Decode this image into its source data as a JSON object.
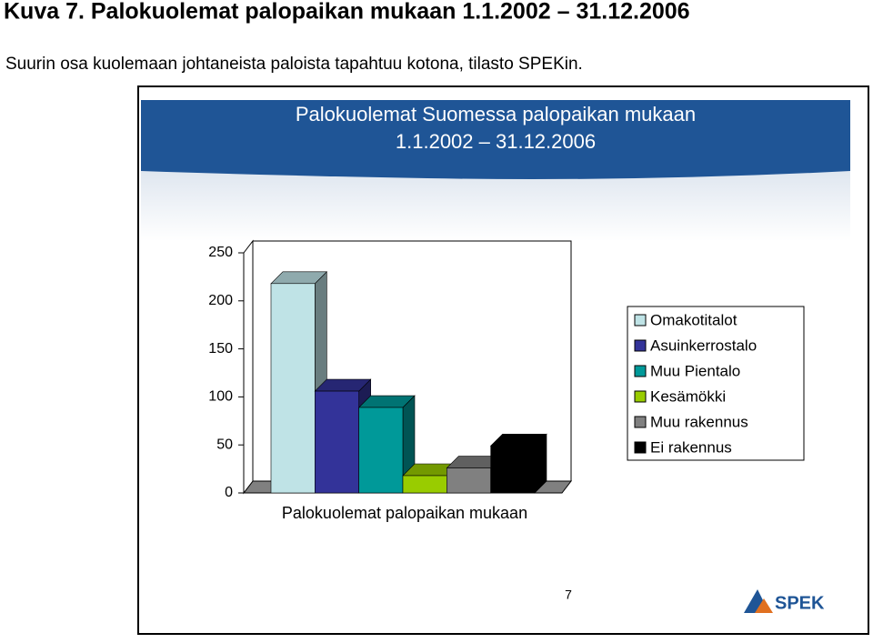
{
  "heading": "Kuva 7. Palokuolemat palopaikan mukaan 1.1.2002 – 31.12.2006",
  "subheading": "Suurin osa kuolemaan johtaneista paloista tapahtuu kotona, tilasto SPEKin.",
  "page_number": "7",
  "logo": "SPEK",
  "chart_data": {
    "type": "bar3d",
    "title": [
      "Palokuolemat Suomessa palopaikan mukaan",
      "1.1.2002 – 31.12.2006"
    ],
    "categories": [
      "Palokuolemat palopaikan mukaan"
    ],
    "series": [
      {
        "name": "Omakotitalot",
        "color": "#bfe3e6",
        "values": [
          218
        ]
      },
      {
        "name": "Asuinkerrostalo",
        "color": "#333399",
        "values": [
          106
        ]
      },
      {
        "name": "Muu Pientalo",
        "color": "#009999",
        "values": [
          89
        ]
      },
      {
        "name": "Kesämökki",
        "color": "#99cc00",
        "values": [
          18
        ]
      },
      {
        "name": "Muu rakennus",
        "color": "#808080",
        "values": [
          26
        ]
      },
      {
        "name": "Ei rakennus",
        "color": "#000000",
        "values": [
          49
        ]
      }
    ],
    "ylim": [
      0,
      250
    ],
    "yticks": [
      0,
      50,
      100,
      150,
      200,
      250
    ],
    "legend": "right"
  }
}
